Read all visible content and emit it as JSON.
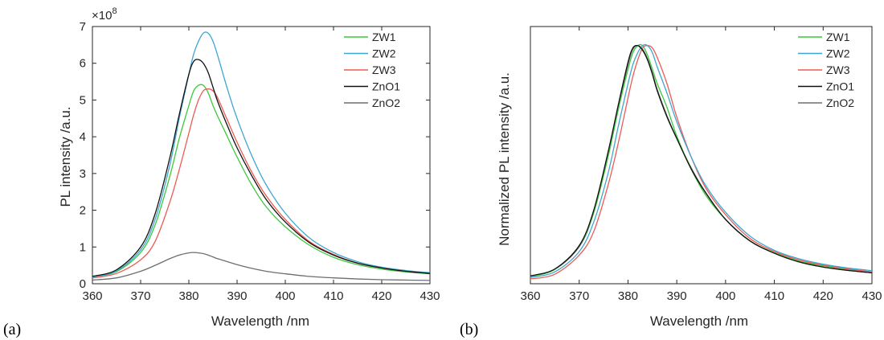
{
  "panel_labels": {
    "a": "(a)",
    "b": "(b)"
  },
  "colors": {
    "ZW1": "#3cc83c",
    "ZW2": "#3ea6d0",
    "ZW3": "#ee5a55",
    "ZnO1": "#111111",
    "ZnO2": "#6e6e6e"
  },
  "chart_data": [
    {
      "type": "line",
      "panel": "(a)",
      "xlabel": "Wavelength /nm",
      "ylabel": "PL intensity /a.u.",
      "y_exponent_label": "×10",
      "y_exponent": "8",
      "xlim": [
        360,
        430
      ],
      "ylim": [
        0,
        7
      ],
      "y_scale_factor": 100000000,
      "xticks": [
        "360",
        "370",
        "380",
        "390",
        "400",
        "410",
        "420",
        "430"
      ],
      "yticks": [
        "0",
        "1",
        "2",
        "3",
        "4",
        "5",
        "6",
        "7"
      ],
      "legend_position": "top-right",
      "x": [
        360,
        365,
        370,
        373,
        376,
        378,
        380,
        381,
        382,
        383,
        384,
        385,
        386,
        388,
        390,
        393,
        396,
        400,
        405,
        410,
        415,
        420,
        425,
        430
      ],
      "series": [
        {
          "name": "ZW1",
          "values": [
            0.18,
            0.33,
            0.85,
            1.6,
            2.9,
            3.95,
            4.85,
            5.25,
            5.4,
            5.4,
            5.2,
            4.85,
            4.55,
            4.0,
            3.45,
            2.7,
            2.1,
            1.55,
            1.05,
            0.72,
            0.52,
            0.4,
            0.32,
            0.27
          ]
        },
        {
          "name": "ZW2",
          "values": [
            0.18,
            0.35,
            0.92,
            1.75,
            3.2,
            4.5,
            5.7,
            6.25,
            6.6,
            6.82,
            6.82,
            6.6,
            6.2,
            5.3,
            4.5,
            3.5,
            2.7,
            1.92,
            1.25,
            0.85,
            0.6,
            0.45,
            0.36,
            0.3
          ]
        },
        {
          "name": "ZW3",
          "values": [
            0.16,
            0.28,
            0.65,
            1.15,
            2.2,
            3.1,
            4.1,
            4.6,
            5.0,
            5.25,
            5.3,
            5.25,
            5.05,
            4.45,
            3.85,
            3.05,
            2.4,
            1.75,
            1.15,
            0.8,
            0.56,
            0.43,
            0.34,
            0.28
          ]
        },
        {
          "name": "ZnO1",
          "values": [
            0.2,
            0.38,
            1.0,
            1.9,
            3.4,
            4.6,
            5.7,
            6.05,
            6.1,
            6.0,
            5.75,
            5.35,
            4.95,
            4.3,
            3.7,
            2.95,
            2.3,
            1.68,
            1.12,
            0.78,
            0.56,
            0.43,
            0.34,
            0.28
          ]
        },
        {
          "name": "ZnO2",
          "values": [
            0.1,
            0.16,
            0.34,
            0.5,
            0.68,
            0.78,
            0.84,
            0.85,
            0.84,
            0.82,
            0.78,
            0.73,
            0.68,
            0.6,
            0.52,
            0.42,
            0.34,
            0.27,
            0.2,
            0.16,
            0.13,
            0.11,
            0.1,
            0.09
          ]
        }
      ]
    },
    {
      "type": "line",
      "panel": "(b)",
      "xlabel": "Wavelength /nm",
      "ylabel": "Normalized PL intensity /a.u.",
      "xlim": [
        360,
        430
      ],
      "ylim": [
        0,
        1.08
      ],
      "xticks": [
        "360",
        "370",
        "380",
        "390",
        "400",
        "410",
        "420",
        "430"
      ],
      "yticks": [],
      "legend_position": "top-right",
      "x": [
        360,
        365,
        370,
        373,
        376,
        378,
        380,
        381,
        382,
        383,
        384,
        385,
        386,
        388,
        390,
        393,
        396,
        400,
        405,
        410,
        415,
        420,
        425,
        430
      ],
      "series": [
        {
          "name": "ZW1",
          "values": [
            0.03,
            0.06,
            0.16,
            0.3,
            0.54,
            0.73,
            0.9,
            0.97,
            1.0,
            1.0,
            0.96,
            0.9,
            0.84,
            0.74,
            0.62,
            0.48,
            0.37,
            0.27,
            0.18,
            0.13,
            0.095,
            0.075,
            0.06,
            0.05
          ]
        },
        {
          "name": "ZW2",
          "values": [
            0.026,
            0.05,
            0.135,
            0.26,
            0.47,
            0.66,
            0.84,
            0.92,
            0.97,
            1.0,
            1.0,
            0.97,
            0.91,
            0.8,
            0.68,
            0.53,
            0.41,
            0.3,
            0.2,
            0.14,
            0.105,
            0.082,
            0.066,
            0.055
          ]
        },
        {
          "name": "ZW3",
          "values": [
            0.02,
            0.04,
            0.12,
            0.22,
            0.42,
            0.59,
            0.78,
            0.87,
            0.94,
            0.99,
            1.0,
            0.99,
            0.95,
            0.84,
            0.7,
            0.53,
            0.4,
            0.29,
            0.19,
            0.135,
            0.1,
            0.078,
            0.062,
            0.05
          ]
        },
        {
          "name": "ZnO1",
          "values": [
            0.033,
            0.062,
            0.16,
            0.31,
            0.56,
            0.75,
            0.93,
            0.99,
            1.0,
            0.98,
            0.94,
            0.88,
            0.81,
            0.7,
            0.61,
            0.48,
            0.38,
            0.27,
            0.18,
            0.128,
            0.092,
            0.07,
            0.056,
            0.046
          ]
        },
        {
          "name": "ZnO2",
          "values": [
            0.032,
            0.06,
            0.155,
            0.3,
            0.55,
            0.74,
            0.92,
            0.985,
            1.0,
            0.985,
            0.945,
            0.885,
            0.815,
            0.705,
            0.61,
            0.485,
            0.38,
            0.27,
            0.18,
            0.128,
            0.092,
            0.07,
            0.056,
            0.046
          ]
        }
      ]
    }
  ]
}
